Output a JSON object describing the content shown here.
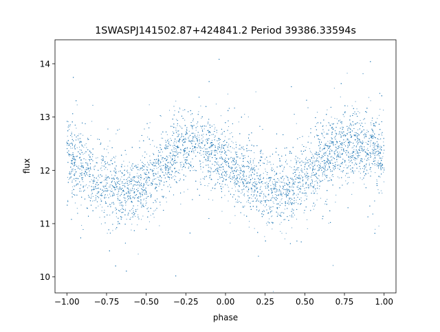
{
  "chart_data": {
    "type": "scatter",
    "title": "1SWASPJ141502.87+424841.2 Period 39386.33594s",
    "xlabel": "phase",
    "ylabel": "flux",
    "xlim": [
      -1.075,
      1.075
    ],
    "ylim": [
      9.7,
      14.45
    ],
    "xticks": [
      -1.0,
      -0.75,
      -0.5,
      -0.25,
      0.0,
      0.25,
      0.5,
      0.75,
      1.0
    ],
    "xtick_labels": [
      "−1.00",
      "−0.75",
      "−0.50",
      "−0.25",
      "0.00",
      "0.25",
      "0.50",
      "0.75",
      "1.00"
    ],
    "yticks": [
      10,
      11,
      12,
      13,
      14
    ],
    "ytick_labels": [
      "10",
      "11",
      "12",
      "13",
      "14"
    ],
    "grid": false,
    "legend": "none",
    "series": [
      {
        "color": "#1f77b4",
        "marker": "small-dot",
        "phase_range": [
          -1.0,
          1.0
        ],
        "curve_description_points": {
          "x": [
            -1.0,
            -0.9,
            -0.8,
            -0.7,
            -0.6,
            -0.5,
            -0.4,
            -0.3,
            -0.2,
            -0.1,
            0.0,
            0.1,
            0.2,
            0.3,
            0.4,
            0.5,
            0.6,
            0.7,
            0.8,
            0.9,
            1.0
          ],
          "y": [
            12.3,
            12.0,
            11.8,
            11.65,
            11.6,
            11.8,
            12.1,
            12.4,
            12.5,
            12.35,
            12.15,
            11.95,
            11.75,
            11.62,
            11.6,
            11.85,
            12.15,
            12.4,
            12.5,
            12.4,
            12.3
          ]
        },
        "scatter_spread_sigma": 0.35,
        "outlier_range": [
          9.9,
          14.2
        ],
        "approx_point_count": 9000
      }
    ]
  }
}
